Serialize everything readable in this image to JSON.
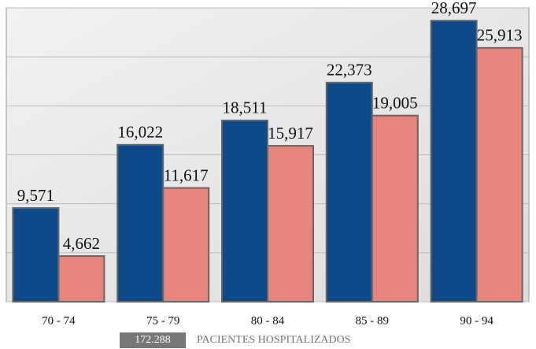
{
  "chart_data": {
    "type": "bar",
    "categories": [
      "70 - 74",
      "75 - 79",
      "80 - 84",
      "85 - 89",
      "90 - 94"
    ],
    "series": [
      {
        "color": "#0e4a8a",
        "values": [
          9571,
          16022,
          18511,
          22373,
          28697
        ],
        "value_labels": [
          "9,571",
          "16,022",
          "18,511",
          "22,373",
          "28,697"
        ]
      },
      {
        "color": "#e8847e",
        "values": [
          4662,
          11617,
          15917,
          19005,
          25913
        ],
        "value_labels": [
          "4,662",
          "11,617",
          "15,917",
          "19,005",
          "25,913"
        ]
      }
    ],
    "ylim": [
      0,
      30000
    ],
    "yticks": [
      0,
      5000,
      10000,
      15000,
      20000,
      25000,
      30000
    ],
    "grid": true,
    "annotation": {
      "box": "172.288",
      "text": "PACIENTES HOSPITALIZADOS"
    }
  }
}
